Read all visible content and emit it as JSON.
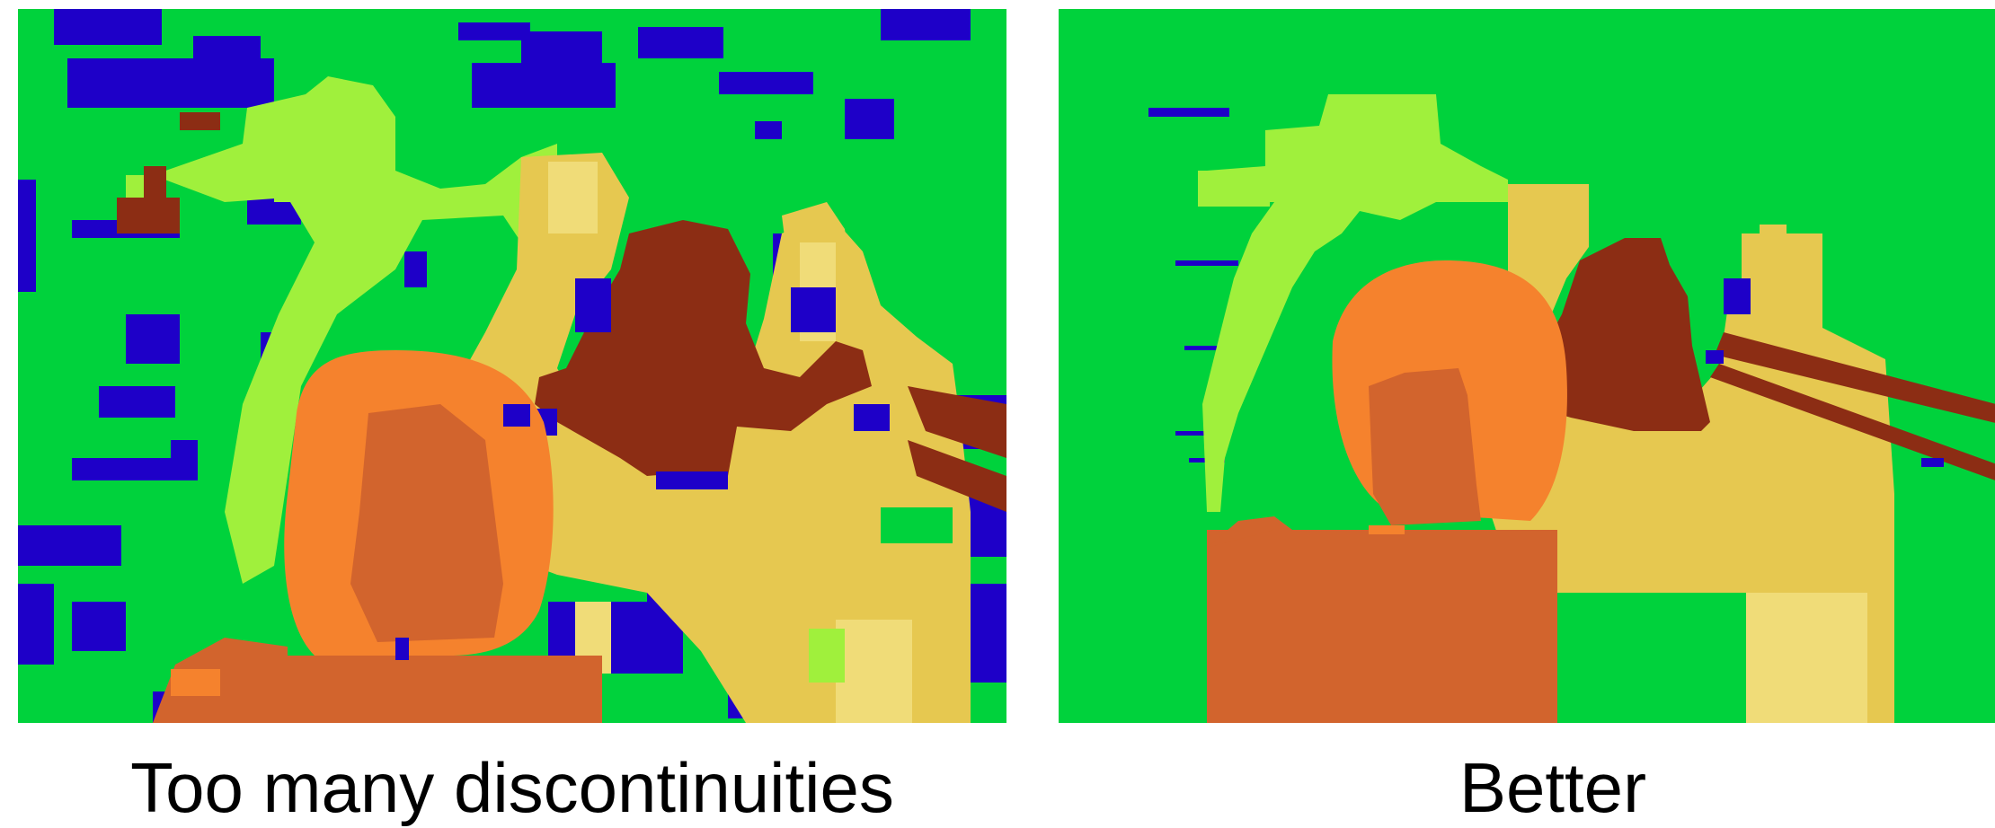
{
  "panels": [
    {
      "caption": "Too many discontinuities"
    },
    {
      "caption": "Better"
    }
  ],
  "colors": {
    "green": "#00d23c",
    "light_green": "#a0f03c",
    "yellow": "#e6c850",
    "pale_yellow": "#f0dc78",
    "orange": "#f5822d",
    "dark_orange": "#d2642d",
    "brown": "#8c2d14",
    "blue": "#1e00c8"
  }
}
